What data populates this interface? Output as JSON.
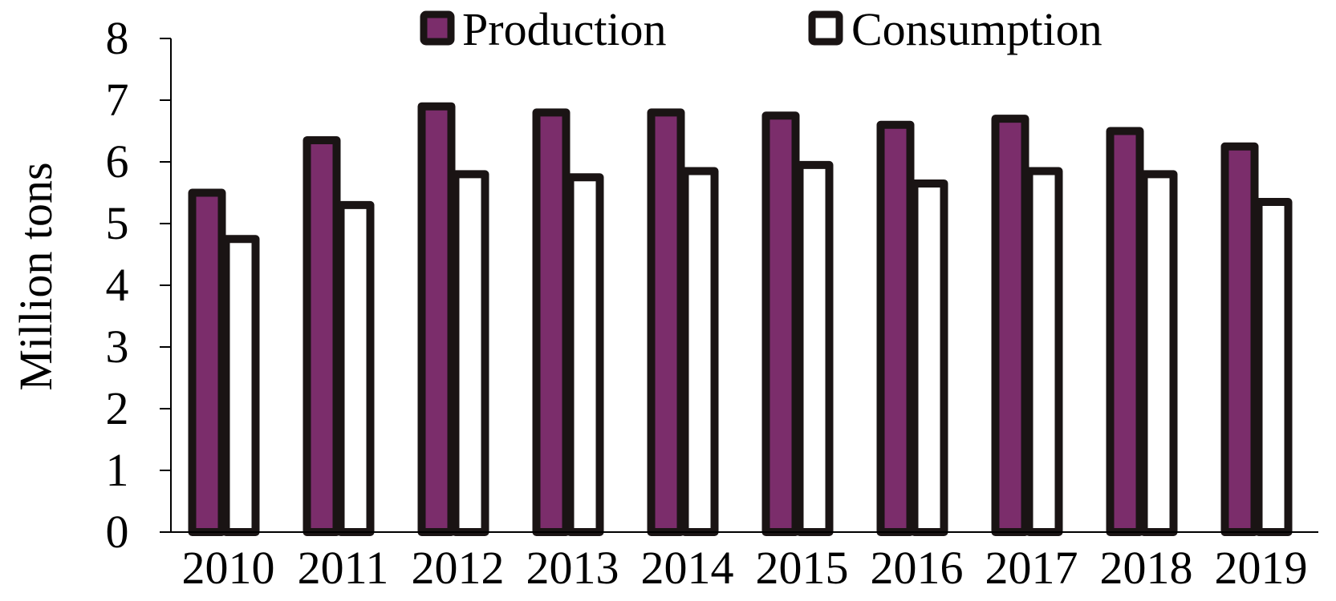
{
  "chart_data": {
    "type": "bar",
    "title": "",
    "xlabel": "",
    "ylabel": "Million tons",
    "ylim": [
      0,
      8
    ],
    "yticks": [
      0,
      1,
      2,
      3,
      4,
      5,
      6,
      7,
      8
    ],
    "grid": false,
    "legend_position": "top",
    "categories": [
      "2010",
      "2011",
      "2012",
      "2013",
      "2014",
      "2015",
      "2016",
      "2017",
      "2018",
      "2019"
    ],
    "series": [
      {
        "name": "Production",
        "color": "#7b2d6b",
        "values": [
          5.5,
          6.35,
          6.9,
          6.8,
          6.8,
          6.75,
          6.6,
          6.7,
          6.5,
          6.25
        ]
      },
      {
        "name": "Consumption",
        "color": "#ffffff",
        "values": [
          4.75,
          5.3,
          5.8,
          5.75,
          5.85,
          5.95,
          5.65,
          5.85,
          5.8,
          5.35
        ]
      }
    ]
  }
}
